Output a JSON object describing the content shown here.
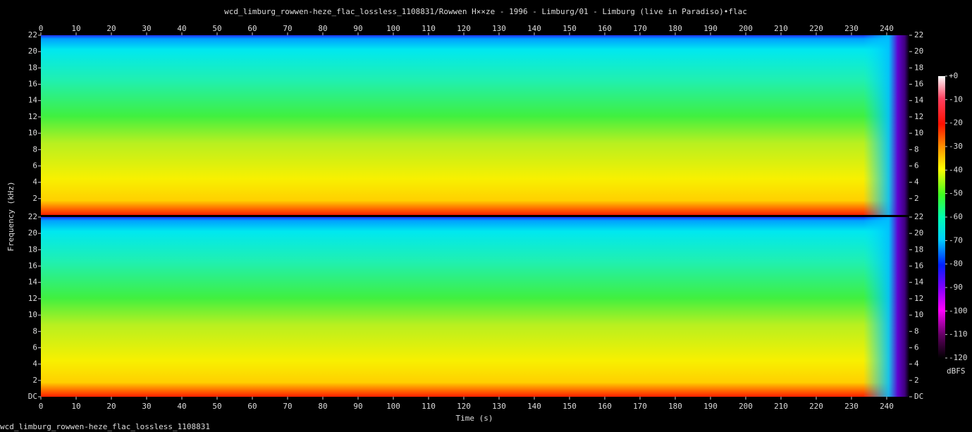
{
  "chart_data": {
    "type": "spectrogram",
    "title": "wcd_limburg_rowwen-heze_flac_lossless_1108831/Rowwen H××ze - 1996 - Limburg/01 - Limburg (live in Paradiso)•flac",
    "xlabel": "Time (s)",
    "ylabel": "Frequency (kHz)",
    "xlim": [
      0,
      246.4
    ],
    "xticks": [
      0,
      10,
      20,
      30,
      40,
      50,
      60,
      70,
      80,
      90,
      100,
      110,
      120,
      130,
      140,
      150,
      160,
      170,
      180,
      190,
      200,
      210,
      220,
      230,
      240
    ],
    "ylim": [
      0,
      22
    ],
    "yticks": [
      {
        "value": 0,
        "label": "DC"
      },
      2,
      4,
      6,
      8,
      10,
      12,
      14,
      16,
      18,
      20,
      22
    ],
    "colorbar": {
      "label": "dBFS",
      "lim": [
        -120,
        0
      ],
      "ticks": [
        {
          "value": 0,
          "label": "+0"
        },
        -10,
        -20,
        -30,
        -40,
        -50,
        -60,
        -70,
        -80,
        -90,
        -100,
        -110,
        -120
      ]
    },
    "footer": "wcd_limburg_rowwen-heze_flac_lossless_1108831"
  }
}
